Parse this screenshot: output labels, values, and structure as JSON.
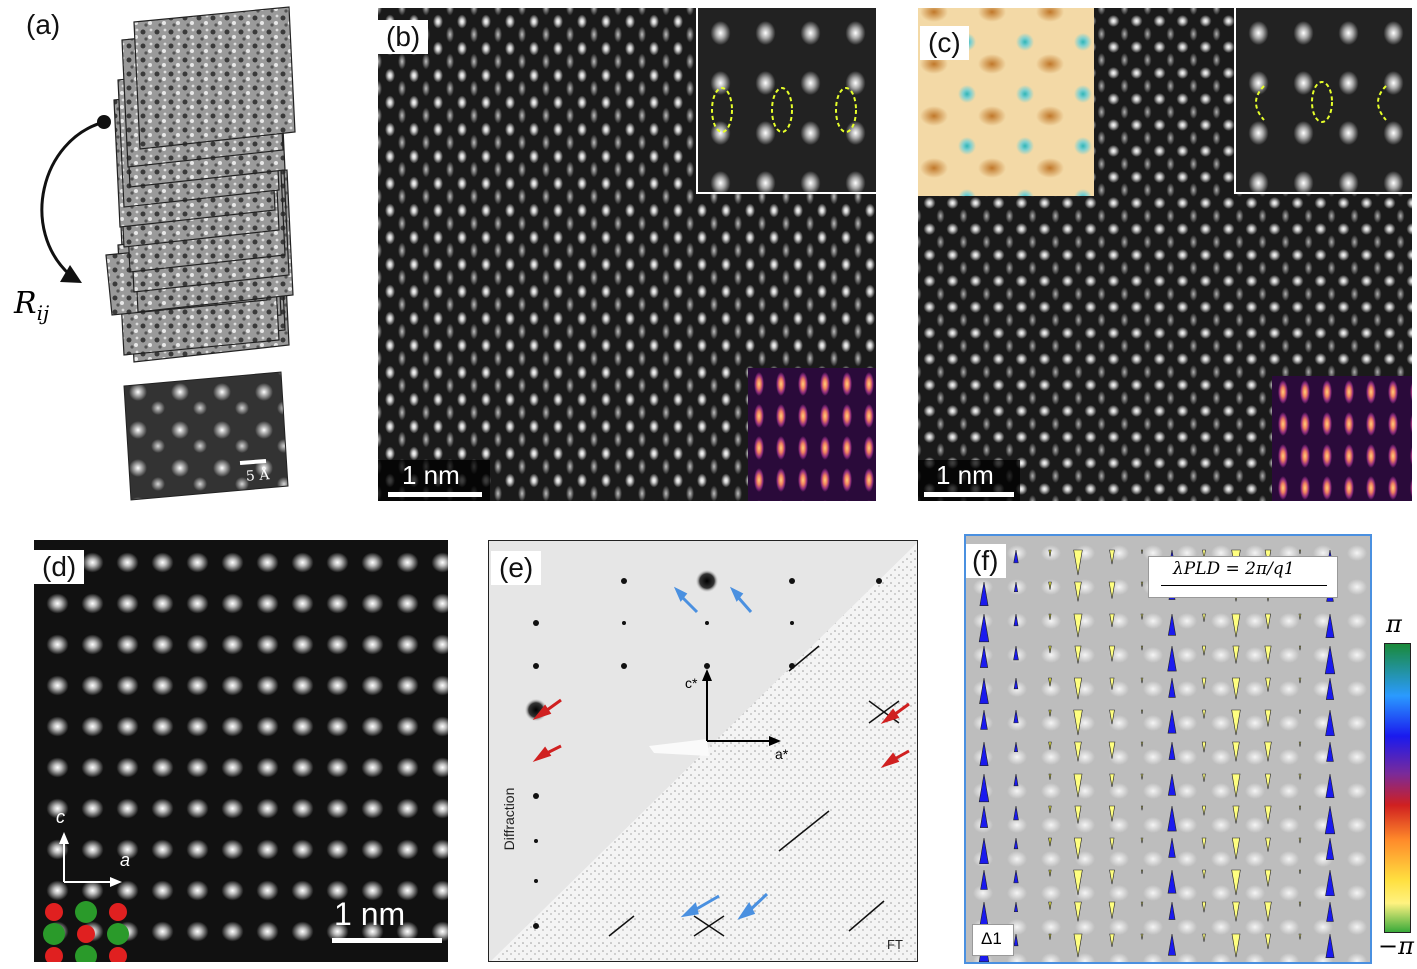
{
  "figure": {
    "panels": {
      "a": {
        "label": "(a)",
        "rotation_label": "R",
        "rotation_subscript": "ij",
        "scalebar_text": "5 Å"
      },
      "b": {
        "label": "(b)",
        "scalebar_text": "1 nm"
      },
      "c": {
        "label": "(c)",
        "scalebar_text": "1 nm"
      },
      "d": {
        "label": "(d)",
        "scalebar_text": "1 nm",
        "axis_c": "c",
        "axis_a": "a"
      },
      "e": {
        "label": "(e)",
        "axis_c": "c*",
        "axis_a": "a*",
        "left_label": "Diffraction",
        "right_label": "FT"
      },
      "f": {
        "label": "(f)",
        "lambda_text": "λPLD = 2π/q1",
        "delta_label": "Δ1",
        "colorbar_top": "π",
        "colorbar_bottom": "−π"
      }
    },
    "colors": {
      "dashed_ellipse": "#e6ff2a",
      "red_arrow": "#d02020",
      "blue_arrow": "#4a90e0",
      "dot_red": "#e02020",
      "dot_green": "#2a9a2a",
      "frame_blue": "#4a90e0"
    }
  }
}
